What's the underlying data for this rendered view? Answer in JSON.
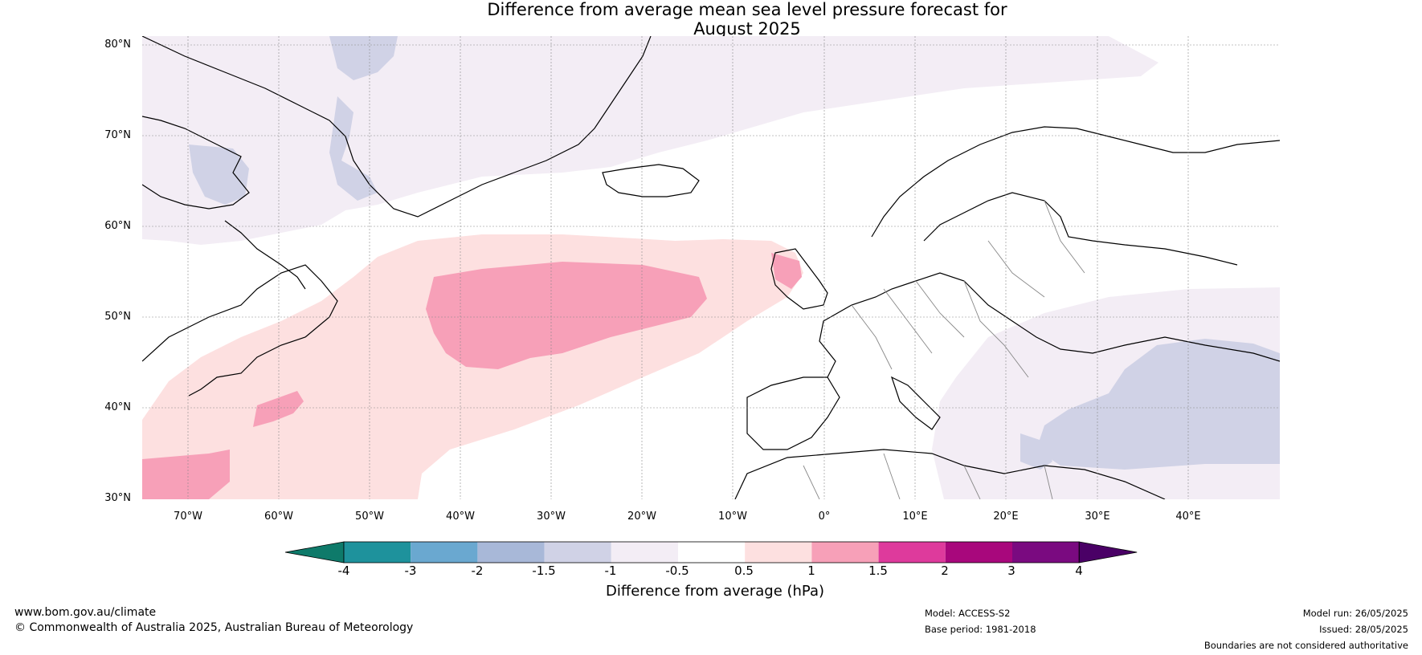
{
  "title_line1": "Difference from average mean sea level pressure forecast for",
  "title_line2": "August 2025",
  "lat_labels": [
    "80°N",
    "70°N",
    "60°N",
    "50°N",
    "40°N",
    "30°N"
  ],
  "lon_labels": [
    "70°W",
    "60°W",
    "50°W",
    "40°W",
    "30°W",
    "20°W",
    "10°W",
    "0°",
    "10°E",
    "20°E",
    "30°E",
    "40°E"
  ],
  "colorbar": {
    "ticks": [
      "-4",
      "-3",
      "-2",
      "-1.5",
      "-1",
      "-0.5",
      "0.5",
      "1",
      "1.5",
      "2",
      "3",
      "4"
    ],
    "colors": [
      "#0e7a6a",
      "#1e929c",
      "#6aa8d0",
      "#a8b8d8",
      "#d0d2e6",
      "#f3edf5",
      "#ffffff",
      "#fde0e0",
      "#f7a0b8",
      "#de3a9c",
      "#a8077c",
      "#7a0a80",
      "#4a0066"
    ],
    "title": "Difference from average (hPa)"
  },
  "footer": {
    "url": "www.bom.gov.au/climate",
    "copyright": "© Commonwealth of Australia 2025, Australian Bureau of Meteorology",
    "model": "Model: ACCESS-S2",
    "base_period": "Base period: 1981-2018",
    "model_run": "Model run: 26/05/2025",
    "issued": "Issued: 28/05/2025",
    "disclaimer": "Boundaries are not considered authoritative"
  }
}
